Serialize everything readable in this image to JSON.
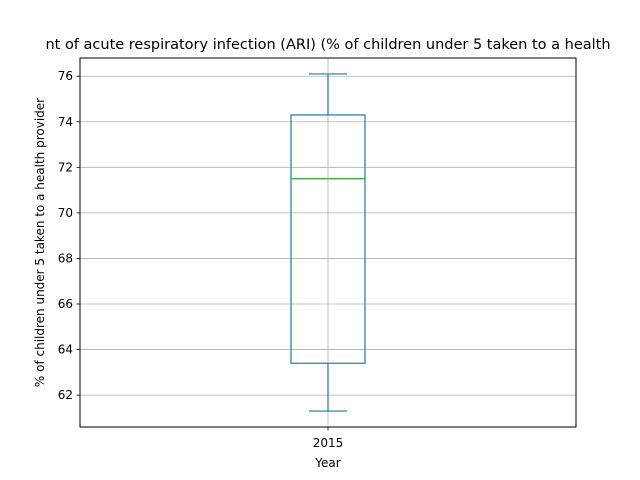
{
  "chart_data": {
    "type": "box",
    "title": "nt of acute respiratory infection (ARI) (% of children under 5 taken to a health",
    "xlabel": "Year",
    "ylabel": "% of children under 5 taken to a health provider",
    "categories": [
      "2015"
    ],
    "boxes": [
      {
        "category": "2015",
        "whisker_low": 61.3,
        "q1": 63.4,
        "median": 71.5,
        "q3": 74.3,
        "whisker_high": 76.1
      }
    ],
    "ylim": [
      60.6,
      76.8
    ],
    "yticks": [
      62,
      64,
      66,
      68,
      70,
      72,
      74,
      76
    ],
    "grid": true,
    "colors": {
      "box": "#1f77b4",
      "median": "#2ca02c",
      "grid": "#b0b0b0"
    }
  }
}
